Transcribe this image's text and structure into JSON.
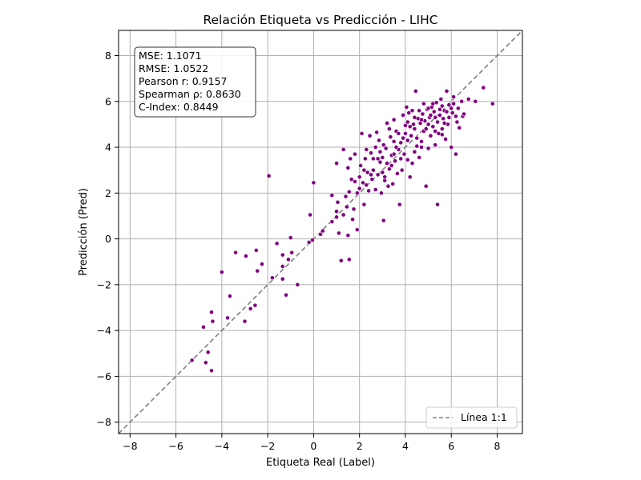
{
  "chart_data": {
    "type": "scatter",
    "title": "Relación Etiqueta vs Predicción - LIHC",
    "xlabel": "Etiqueta Real (Label)",
    "ylabel": "Predicción (Pred)",
    "xlim": [
      -8.5,
      9.1
    ],
    "ylim": [
      -8.5,
      9.1
    ],
    "xticks": [
      -8,
      -6,
      -4,
      -2,
      0,
      2,
      4,
      6,
      8
    ],
    "yticks": [
      -8,
      -6,
      -4,
      -2,
      0,
      2,
      4,
      6,
      8
    ],
    "xtick_labels": [
      "−8",
      "−6",
      "−4",
      "−2",
      "0",
      "2",
      "4",
      "6",
      "8"
    ],
    "ytick_labels": [
      "−8",
      "−6",
      "−4",
      "−2",
      "0",
      "2",
      "4",
      "6",
      "8"
    ],
    "grid": true,
    "point_color": "#800080",
    "reference_line": {
      "name": "Línea 1:1",
      "color": "#808080",
      "style": "dashed"
    },
    "legend": {
      "position": "bottom-right",
      "entries": [
        "Línea 1:1"
      ]
    },
    "stats": [
      "MSE: 1.1071",
      "RMSE: 1.0522",
      "Pearson r: 0.9157",
      "Spearman ρ: 0.8630",
      "C-Index: 0.8449"
    ],
    "stats_position": "top-left",
    "points": [
      [
        -5.3,
        -5.3
      ],
      [
        -4.8,
        -3.85
      ],
      [
        -4.6,
        -4.95
      ],
      [
        -4.7,
        -5.4
      ],
      [
        -4.45,
        -5.75
      ],
      [
        -4.45,
        -3.2
      ],
      [
        -4.4,
        -3.6
      ],
      [
        -4.0,
        -1.45
      ],
      [
        -3.75,
        -3.45
      ],
      [
        -3.65,
        -2.5
      ],
      [
        -3.4,
        -0.6
      ],
      [
        -3.0,
        -3.6
      ],
      [
        -2.95,
        -0.75
      ],
      [
        -2.75,
        -3.05
      ],
      [
        -2.55,
        -2.9
      ],
      [
        -2.5,
        -0.5
      ],
      [
        -2.45,
        -1.4
      ],
      [
        -2.25,
        -1.1
      ],
      [
        -1.95,
        2.75
      ],
      [
        -1.8,
        -1.7
      ],
      [
        -1.6,
        -0.2
      ],
      [
        -1.35,
        -0.7
      ],
      [
        -1.35,
        -1.2
      ],
      [
        -1.35,
        -1.75
      ],
      [
        -1.2,
        -2.45
      ],
      [
        -1.1,
        -0.9
      ],
      [
        -1.0,
        0.05
      ],
      [
        -0.95,
        -0.6
      ],
      [
        -0.7,
        -2.0
      ],
      [
        -0.2,
        -0.15
      ],
      [
        -0.15,
        1.05
      ],
      [
        -0.05,
        -0.05
      ],
      [
        0.0,
        2.45
      ],
      [
        0.3,
        0.2
      ],
      [
        0.4,
        0.35
      ],
      [
        0.8,
        0.75
      ],
      [
        0.8,
        1.9
      ],
      [
        1.0,
        0.95
      ],
      [
        1.0,
        1.2
      ],
      [
        1.0,
        3.3
      ],
      [
        1.05,
        1.6
      ],
      [
        1.1,
        0.25
      ],
      [
        1.2,
        -0.95
      ],
      [
        1.3,
        1.05
      ],
      [
        1.3,
        3.9
      ],
      [
        1.4,
        1.85
      ],
      [
        1.45,
        1.4
      ],
      [
        1.5,
        0.15
      ],
      [
        1.55,
        -0.9
      ],
      [
        1.5,
        3.1
      ],
      [
        1.55,
        2.05
      ],
      [
        1.6,
        3.5
      ],
      [
        1.65,
        2.6
      ],
      [
        1.7,
        0.85
      ],
      [
        1.75,
        1.3
      ],
      [
        1.8,
        3.7
      ],
      [
        1.9,
        2.0
      ],
      [
        1.9,
        0.4
      ],
      [
        2.0,
        2.7
      ],
      [
        2.05,
        3.2
      ],
      [
        2.1,
        4.6
      ],
      [
        2.15,
        2.45
      ],
      [
        2.2,
        1.5
      ],
      [
        2.25,
        3.5
      ],
      [
        2.3,
        2.35
      ],
      [
        2.35,
        2.9
      ],
      [
        2.4,
        2.1
      ],
      [
        2.45,
        4.5
      ],
      [
        2.5,
        3.75
      ],
      [
        2.55,
        2.6
      ],
      [
        2.6,
        3.0
      ],
      [
        2.7,
        2.15
      ],
      [
        2.75,
        4.65
      ],
      [
        2.8,
        2.8
      ],
      [
        2.85,
        4.3
      ],
      [
        2.9,
        3.35
      ],
      [
        2.95,
        2.0
      ],
      [
        3.0,
        3.55
      ],
      [
        3.05,
        4.1
      ],
      [
        3.05,
        0.8
      ],
      [
        3.1,
        2.55
      ],
      [
        3.15,
        3.95
      ],
      [
        3.2,
        5.05
      ],
      [
        3.25,
        2.3
      ],
      [
        3.3,
        3.05
      ],
      [
        3.35,
        4.45
      ],
      [
        3.4,
        3.65
      ],
      [
        3.45,
        2.4
      ],
      [
        3.5,
        5.2
      ],
      [
        3.55,
        3.4
      ],
      [
        3.6,
        4.7
      ],
      [
        3.65,
        2.85
      ],
      [
        3.7,
        3.9
      ],
      [
        3.75,
        1.5
      ],
      [
        3.8,
        4.2
      ],
      [
        3.85,
        3.0
      ],
      [
        3.9,
        5.4
      ],
      [
        3.95,
        3.7
      ],
      [
        4.0,
        4.95
      ],
      [
        4.05,
        5.75
      ],
      [
        4.1,
        3.45
      ],
      [
        4.15,
        5.5
      ],
      [
        4.2,
        2.7
      ],
      [
        4.25,
        4.5
      ],
      [
        4.3,
        3.3
      ],
      [
        4.35,
        5.0
      ],
      [
        4.4,
        4.8
      ],
      [
        4.45,
        6.45
      ],
      [
        4.5,
        4.05
      ],
      [
        4.55,
        5.25
      ],
      [
        4.6,
        3.55
      ],
      [
        4.65,
        5.05
      ],
      [
        4.7,
        4.25
      ],
      [
        4.75,
        5.45
      ],
      [
        4.8,
        4.7
      ],
      [
        4.85,
        5.15
      ],
      [
        4.9,
        2.3
      ],
      [
        4.95,
        5.65
      ],
      [
        5.0,
        3.95
      ],
      [
        5.05,
        5.3
      ],
      [
        5.1,
        4.5
      ],
      [
        5.15,
        5.75
      ],
      [
        5.2,
        4.9
      ],
      [
        5.25,
        5.55
      ],
      [
        5.3,
        4.1
      ],
      [
        5.35,
        5.95
      ],
      [
        5.4,
        1.5
      ],
      [
        5.45,
        4.6
      ],
      [
        5.5,
        5.4
      ],
      [
        5.55,
        6.1
      ],
      [
        5.6,
        4.8
      ],
      [
        5.65,
        5.25
      ],
      [
        5.7,
        5.6
      ],
      [
        5.75,
        4.35
      ],
      [
        5.8,
        6.45
      ],
      [
        5.85,
        5.0
      ],
      [
        5.9,
        5.85
      ],
      [
        6.0,
        4.0
      ],
      [
        6.05,
        5.5
      ],
      [
        6.1,
        6.2
      ],
      [
        6.2,
        3.7
      ],
      [
        6.25,
        5.1
      ],
      [
        6.3,
        5.7
      ],
      [
        6.35,
        4.85
      ],
      [
        6.45,
        6.0
      ],
      [
        6.5,
        5.35
      ],
      [
        6.55,
        5.45
      ],
      [
        6.75,
        6.1
      ],
      [
        7.05,
        6.0
      ],
      [
        7.4,
        6.6
      ],
      [
        7.8,
        5.9
      ],
      [
        3.3,
        4.8
      ],
      [
        3.6,
        4.0
      ],
      [
        4.0,
        4.6
      ],
      [
        4.3,
        5.6
      ],
      [
        4.7,
        5.2
      ],
      [
        5.0,
        5.0
      ],
      [
        5.3,
        5.3
      ],
      [
        5.6,
        5.8
      ],
      [
        5.9,
        5.3
      ],
      [
        2.6,
        3.5
      ],
      [
        2.9,
        3.8
      ],
      [
        3.2,
        3.3
      ],
      [
        3.5,
        3.7
      ],
      [
        3.9,
        4.4
      ],
      [
        4.2,
        4.9
      ],
      [
        4.5,
        4.4
      ],
      [
        4.8,
        5.9
      ],
      [
        5.1,
        5.4
      ],
      [
        5.4,
        5.1
      ],
      [
        5.7,
        5.05
      ],
      [
        6.0,
        5.7
      ],
      [
        2.2,
        3.0
      ],
      [
        2.5,
        2.8
      ],
      [
        2.8,
        3.5
      ],
      [
        3.0,
        2.9
      ],
      [
        3.4,
        3.2
      ],
      [
        3.7,
        4.6
      ],
      [
        4.1,
        4.3
      ],
      [
        4.4,
        3.8
      ],
      [
        4.6,
        5.6
      ],
      [
        4.9,
        4.8
      ],
      [
        5.2,
        5.9
      ],
      [
        5.5,
        5.65
      ],
      [
        5.8,
        5.55
      ],
      [
        6.1,
        5.9
      ],
      [
        1.8,
        2.5
      ],
      [
        2.0,
        2.2
      ],
      [
        2.3,
        3.9
      ],
      [
        2.7,
        4.0
      ],
      [
        3.1,
        2.7
      ],
      [
        3.5,
        4.25
      ],
      [
        3.8,
        3.5
      ],
      [
        4.1,
        5.1
      ],
      [
        4.4,
        5.3
      ],
      [
        4.7,
        4.0
      ],
      [
        5.0,
        5.7
      ],
      [
        5.3,
        4.7
      ],
      [
        5.6,
        4.55
      ],
      [
        6.2,
        5.35
      ]
    ]
  }
}
